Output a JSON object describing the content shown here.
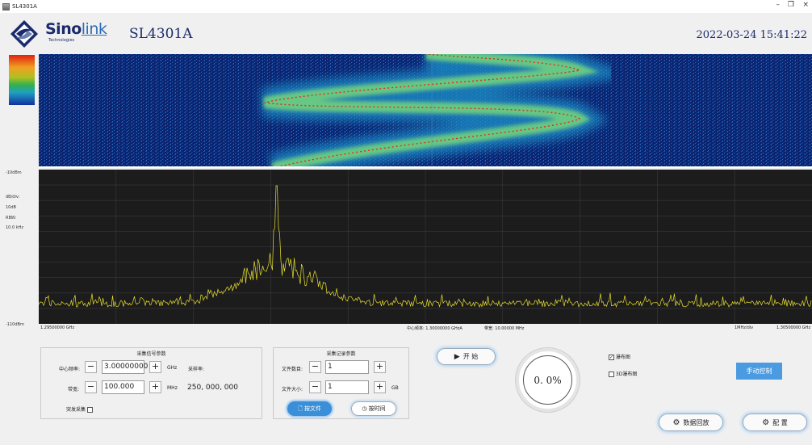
{
  "window": {
    "title": "SL4301A",
    "minimize": "–",
    "restore": "❐",
    "close": "×"
  },
  "header": {
    "brand_main": "Sino",
    "brand_link": "link",
    "brand_sub": "Technologies",
    "model": "SL4301A",
    "datetime": "2022-03-24 15:41:22"
  },
  "spectrum_labels": {
    "ref_top": "-10dBm",
    "db_div_label": "dB/div:",
    "db_div_value": "10dB",
    "rbw_label": "RBW:",
    "rbw_value": "10.0 kHz",
    "ref_bottom": "-110dBm"
  },
  "axis": {
    "start": "1.29500000 GHz",
    "center": "中心频率: 1.30000000 GHzA",
    "span": "带宽: 10.00000 MHz",
    "div": "1MHz/div",
    "stop": "1.30500000 GHz"
  },
  "acq_panel": {
    "title": "采集信号参数",
    "center_freq_label": "中心频率:",
    "center_freq_value": "3.00000000",
    "center_freq_unit": "GHz",
    "sample_rate_label": "采样率:",
    "bandwidth_label": "带宽:",
    "bandwidth_value": "100.000",
    "bandwidth_unit": "MHz",
    "sample_rate_value": "250, 000, 000",
    "burst_label": "突发采集"
  },
  "rec_panel": {
    "title": "采集记录参数",
    "file_count_label": "文件数目:",
    "file_count_value": "1",
    "file_size_label": "文件大小:",
    "file_size_value": "1",
    "file_size_unit": "GB",
    "by_file": "按文件",
    "by_time": "按时间"
  },
  "controls": {
    "start": "开 始",
    "progress": "0. 0%",
    "progress_fraction": 0.0,
    "waterfall_check": "瀑布图",
    "waterfall_checked": true,
    "waterfall3d_check": "3D瀑布图",
    "waterfall3d_checked": false,
    "manual": "手动控制",
    "playback": "数据回放",
    "config": "配 置",
    "minus": "−",
    "plus": "+",
    "check_mark": "✓"
  },
  "colors": {
    "accent": "#4b9be0",
    "trace": "#e8e030",
    "waterfall_bg": "#0a1f66",
    "spectrum_bg": "#1c1c1c"
  }
}
